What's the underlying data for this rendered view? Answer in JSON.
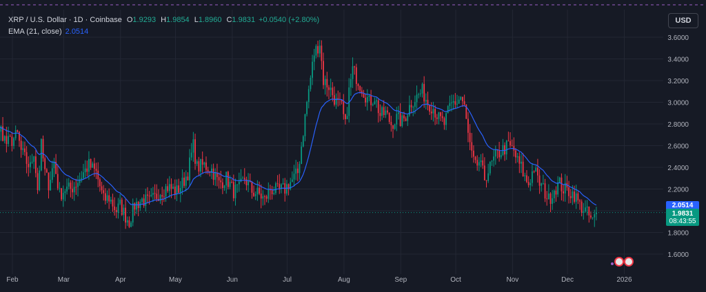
{
  "legend": {
    "symbol": "XRP / U.S. Dollar · 1D · Coinbase",
    "o_label": "O",
    "open": "1.9293",
    "h_label": "H",
    "high": "1.9854",
    "l_label": "L",
    "low": "1.8960",
    "c_label": "C",
    "close": "1.9831",
    "change": "+0.0540 (+2.80%)",
    "ema_label": "EMA (21, close)",
    "ema_value": "2.0514"
  },
  "currency_button": "USD",
  "price_tags": {
    "ema": "2.0514",
    "last": "1.9831",
    "countdown": "08:43:55"
  },
  "colors": {
    "background": "#161a25",
    "up": "#089981",
    "down": "#f23645",
    "ema": "#2962ff",
    "grid": "#232734",
    "text": "#b2b5be"
  },
  "chart_data": {
    "type": "candlestick",
    "title": "XRP / U.S. Dollar · 1D · Coinbase",
    "ylim": [
      1.45,
      3.75
    ],
    "y_ticks": [
      "3.6000",
      "3.4000",
      "3.2000",
      "3.0000",
      "2.8000",
      "2.6000",
      "2.4000",
      "2.2000",
      "2.0000",
      "1.8000",
      "1.6000"
    ],
    "x_ticks": [
      "Feb",
      "Mar",
      "Apr",
      "May",
      "Jun",
      "Jul",
      "Aug",
      "Sep",
      "Oct",
      "Nov",
      "Dec",
      "2026"
    ],
    "x_ticks_day_index": [
      0,
      28,
      59,
      89,
      120,
      150,
      181,
      212,
      242,
      273,
      303,
      334
    ],
    "anchors": [
      [
        -23,
        3.2
      ],
      [
        -21,
        3.0
      ],
      [
        -19,
        2.9
      ],
      [
        -16,
        2.6
      ],
      [
        -13,
        2.4
      ],
      [
        -10,
        2.6
      ],
      [
        -7,
        2.75
      ],
      [
        -4,
        2.62
      ],
      [
        -1,
        2.65
      ],
      [
        2,
        2.7
      ],
      [
        4,
        2.55
      ],
      [
        7,
        2.45
      ],
      [
        9,
        2.4
      ],
      [
        11,
        2.55
      ],
      [
        13,
        2.2
      ],
      [
        15,
        2.6
      ],
      [
        17,
        2.35
      ],
      [
        19,
        2.25
      ],
      [
        22,
        2.45
      ],
      [
        25,
        2.15
      ],
      [
        28,
        2.2
      ],
      [
        31,
        2.2
      ],
      [
        34,
        2.25
      ],
      [
        38,
        2.35
      ],
      [
        41,
        2.42
      ],
      [
        45,
        2.35
      ],
      [
        49,
        2.1
      ],
      [
        52,
        2.12
      ],
      [
        56,
        2.0
      ],
      [
        58,
        2.05
      ],
      [
        61,
        1.95
      ],
      [
        63,
        1.9
      ],
      [
        66,
        2.05
      ],
      [
        70,
        2.1
      ],
      [
        74,
        2.08
      ],
      [
        77,
        2.12
      ],
      [
        80,
        2.18
      ],
      [
        84,
        2.22
      ],
      [
        89,
        2.18
      ],
      [
        92,
        2.25
      ],
      [
        95,
        2.35
      ],
      [
        98,
        2.6
      ],
      [
        100,
        2.4
      ],
      [
        104,
        2.42
      ],
      [
        108,
        2.38
      ],
      [
        112,
        2.25
      ],
      [
        116,
        2.3
      ],
      [
        120,
        2.18
      ],
      [
        123,
        2.2
      ],
      [
        126,
        2.3
      ],
      [
        130,
        2.18
      ],
      [
        134,
        2.15
      ],
      [
        137,
        2.1
      ],
      [
        140,
        2.2
      ],
      [
        144,
        2.18
      ],
      [
        148,
        2.2
      ],
      [
        150,
        2.25
      ],
      [
        152,
        2.28
      ],
      [
        155,
        2.35
      ],
      [
        157,
        2.6
      ],
      [
        160,
        3.0
      ],
      [
        164,
        3.45
      ],
      [
        167,
        3.55
      ],
      [
        169,
        3.2
      ],
      [
        172,
        3.15
      ],
      [
        176,
        3.0
      ],
      [
        179,
        2.95
      ],
      [
        181,
        2.78
      ],
      [
        183,
        3.1
      ],
      [
        185,
        3.3
      ],
      [
        188,
        3.2
      ],
      [
        191,
        3.1
      ],
      [
        194,
        3.0
      ],
      [
        197,
        3.05
      ],
      [
        200,
        2.88
      ],
      [
        203,
        2.9
      ],
      [
        206,
        2.8
      ],
      [
        209,
        2.85
      ],
      [
        212,
        2.82
      ],
      [
        214,
        2.88
      ],
      [
        217,
        3.0
      ],
      [
        220,
        3.05
      ],
      [
        223,
        3.1
      ],
      [
        226,
        3.0
      ],
      [
        229,
        2.95
      ],
      [
        232,
        2.85
      ],
      [
        235,
        2.8
      ],
      [
        238,
        2.95
      ],
      [
        240,
        3.0
      ],
      [
        242,
        3.0
      ],
      [
        244,
        3.05
      ],
      [
        246,
        2.95
      ],
      [
        248,
        2.7
      ],
      [
        250,
        2.5
      ],
      [
        252,
        2.4
      ],
      [
        254,
        2.45
      ],
      [
        257,
        2.3
      ],
      [
        260,
        2.4
      ],
      [
        263,
        2.5
      ],
      [
        266,
        2.55
      ],
      [
        270,
        2.6
      ],
      [
        273,
        2.55
      ],
      [
        275,
        2.45
      ],
      [
        277,
        2.4
      ],
      [
        279,
        2.3
      ],
      [
        281,
        2.25
      ],
      [
        284,
        2.4
      ],
      [
        286,
        2.28
      ],
      [
        289,
        2.2
      ],
      [
        292,
        2.1
      ],
      [
        295,
        2.2
      ],
      [
        298,
        2.25
      ],
      [
        300,
        2.2
      ],
      [
        303,
        2.18
      ],
      [
        306,
        2.15
      ],
      [
        309,
        2.05
      ],
      [
        312,
        2.0
      ],
      [
        314,
        1.95
      ],
      [
        316,
        1.9
      ],
      [
        318,
        1.98
      ]
    ],
    "ema_period": 21,
    "last_close": 1.9831,
    "last_ema": 2.0514
  }
}
